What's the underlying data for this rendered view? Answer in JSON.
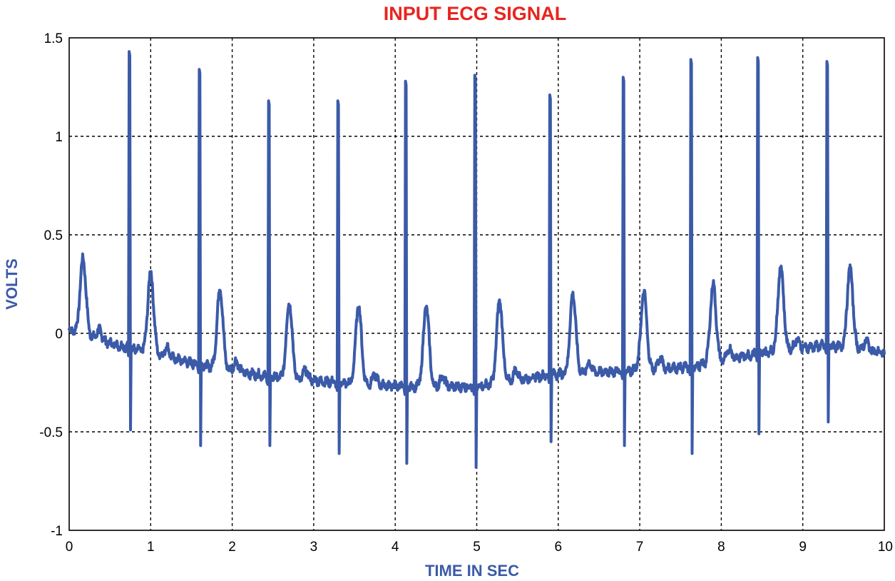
{
  "colors": {
    "title": "#e8251f",
    "axis_label": "#3b5aa8",
    "signal": "#3b5aa8"
  },
  "chart_data": {
    "type": "line",
    "title": "INPUT ECG SIGNAL",
    "xlabel": "TIME IN SEC",
    "ylabel": "VOLTS",
    "xlim": [
      0,
      10
    ],
    "ylim": [
      -1,
      1.5
    ],
    "xticks": [
      0,
      1,
      2,
      3,
      4,
      5,
      6,
      7,
      8,
      9,
      10
    ],
    "yticks": [
      -1,
      -0.5,
      0,
      0.5,
      1,
      1.5
    ],
    "xtick_labels": [
      "0",
      "1",
      "2",
      "3",
      "4",
      "5",
      "6",
      "7",
      "8",
      "9",
      "10"
    ],
    "ytick_labels": [
      "-1",
      "-0.5",
      "0",
      "0.5",
      "1",
      "1.5"
    ],
    "grid": true,
    "series": [
      {
        "peaks_r_wave": [
          {
            "t": 0.74,
            "r": 1.43,
            "s": -0.49
          },
          {
            "t": 1.6,
            "r": 1.34,
            "s": -0.57
          },
          {
            "t": 2.45,
            "r": 1.18,
            "s": -0.57
          },
          {
            "t": 3.3,
            "r": 1.18,
            "s": -0.61
          },
          {
            "t": 4.13,
            "r": 1.28,
            "s": -0.66
          },
          {
            "t": 4.98,
            "r": 1.31,
            "s": -0.68
          },
          {
            "t": 5.9,
            "r": 1.21,
            "s": -0.55
          },
          {
            "t": 6.8,
            "r": 1.3,
            "s": -0.57
          },
          {
            "t": 7.63,
            "r": 1.39,
            "s": -0.61
          },
          {
            "t": 8.45,
            "r": 1.4,
            "s": -0.51
          },
          {
            "t": 9.3,
            "r": 1.38,
            "s": -0.45
          }
        ],
        "t_waves": [
          {
            "t": 0.17,
            "v": 0.38
          },
          {
            "t": 1.0,
            "v": 0.31
          },
          {
            "t": 1.85,
            "v": 0.23
          },
          {
            "t": 2.7,
            "v": 0.16
          },
          {
            "t": 3.55,
            "v": 0.14
          },
          {
            "t": 4.38,
            "v": 0.14
          },
          {
            "t": 5.28,
            "v": 0.17
          },
          {
            "t": 6.18,
            "v": 0.2
          },
          {
            "t": 7.05,
            "v": 0.21
          },
          {
            "t": 7.9,
            "v": 0.25
          },
          {
            "t": 8.73,
            "v": 0.34
          },
          {
            "t": 9.58,
            "v": 0.33
          }
        ],
        "baseline": [
          {
            "t": 0.0,
            "v": 0.02
          },
          {
            "t": 0.5,
            "v": -0.05
          },
          {
            "t": 1.0,
            "v": -0.1
          },
          {
            "t": 1.6,
            "v": -0.16
          },
          {
            "t": 2.45,
            "v": -0.22
          },
          {
            "t": 3.3,
            "v": -0.25
          },
          {
            "t": 4.13,
            "v": -0.27
          },
          {
            "t": 5.0,
            "v": -0.27
          },
          {
            "t": 5.9,
            "v": -0.21
          },
          {
            "t": 6.8,
            "v": -0.19
          },
          {
            "t": 7.63,
            "v": -0.17
          },
          {
            "t": 8.45,
            "v": -0.1
          },
          {
            "t": 9.3,
            "v": -0.06
          },
          {
            "t": 10.0,
            "v": -0.1
          }
        ]
      }
    ]
  }
}
